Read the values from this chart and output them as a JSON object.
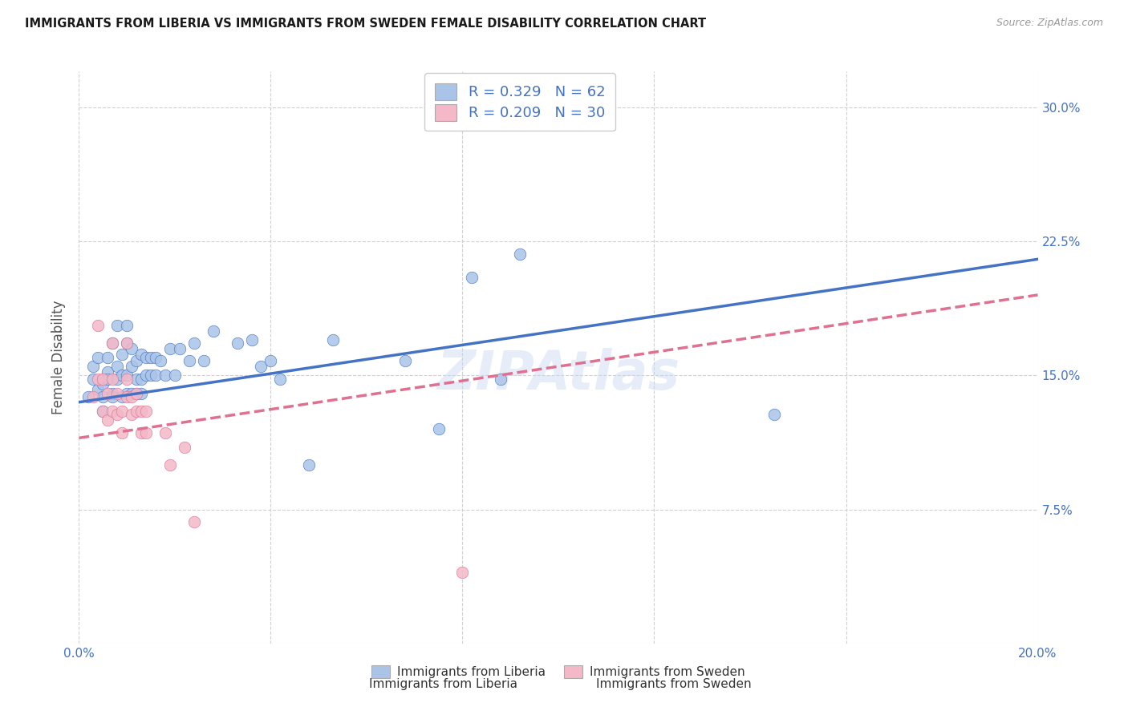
{
  "title": "IMMIGRANTS FROM LIBERIA VS IMMIGRANTS FROM SWEDEN FEMALE DISABILITY CORRELATION CHART",
  "source": "Source: ZipAtlas.com",
  "ylabel": "Female Disability",
  "xlim": [
    0.0,
    0.2
  ],
  "ylim": [
    0.0,
    0.32
  ],
  "xticks": [
    0.0,
    0.04,
    0.08,
    0.12,
    0.16,
    0.2
  ],
  "xticklabels_show": [
    "0.0%",
    "20.0%"
  ],
  "yticks": [
    0.0,
    0.075,
    0.15,
    0.225,
    0.3
  ],
  "yticklabels_right": [
    "",
    "7.5%",
    "15.0%",
    "22.5%",
    "30.0%"
  ],
  "r_liberia": 0.329,
  "n_liberia": 62,
  "r_sweden": 0.209,
  "n_sweden": 30,
  "legend_label_1": "Immigrants from Liberia",
  "legend_label_2": "Immigrants from Sweden",
  "color_liberia": "#aac4e8",
  "color_sweden": "#f4b8c8",
  "line_color_liberia": "#4472c4",
  "line_color_sweden": "#e07090",
  "watermark": "ZIPAtlas",
  "background_color": "#ffffff",
  "grid_color": "#d0d0d0",
  "blue_text_color": "#4472c4",
  "liberia_points": [
    [
      0.002,
      0.138
    ],
    [
      0.003,
      0.148
    ],
    [
      0.003,
      0.155
    ],
    [
      0.004,
      0.142
    ],
    [
      0.004,
      0.16
    ],
    [
      0.005,
      0.13
    ],
    [
      0.005,
      0.145
    ],
    [
      0.005,
      0.138
    ],
    [
      0.006,
      0.152
    ],
    [
      0.006,
      0.148
    ],
    [
      0.006,
      0.16
    ],
    [
      0.007,
      0.14
    ],
    [
      0.007,
      0.168
    ],
    [
      0.007,
      0.138
    ],
    [
      0.008,
      0.148
    ],
    [
      0.008,
      0.155
    ],
    [
      0.008,
      0.178
    ],
    [
      0.009,
      0.138
    ],
    [
      0.009,
      0.15
    ],
    [
      0.009,
      0.162
    ],
    [
      0.01,
      0.14
    ],
    [
      0.01,
      0.15
    ],
    [
      0.01,
      0.178
    ],
    [
      0.01,
      0.168
    ],
    [
      0.011,
      0.155
    ],
    [
      0.011,
      0.165
    ],
    [
      0.011,
      0.14
    ],
    [
      0.012,
      0.148
    ],
    [
      0.012,
      0.158
    ],
    [
      0.012,
      0.14
    ],
    [
      0.013,
      0.148
    ],
    [
      0.013,
      0.162
    ],
    [
      0.013,
      0.14
    ],
    [
      0.014,
      0.15
    ],
    [
      0.014,
      0.16
    ],
    [
      0.015,
      0.15
    ],
    [
      0.015,
      0.16
    ],
    [
      0.016,
      0.15
    ],
    [
      0.016,
      0.16
    ],
    [
      0.017,
      0.158
    ],
    [
      0.018,
      0.15
    ],
    [
      0.019,
      0.165
    ],
    [
      0.02,
      0.15
    ],
    [
      0.021,
      0.165
    ],
    [
      0.023,
      0.158
    ],
    [
      0.024,
      0.168
    ],
    [
      0.026,
      0.158
    ],
    [
      0.028,
      0.175
    ],
    [
      0.033,
      0.168
    ],
    [
      0.036,
      0.17
    ],
    [
      0.038,
      0.155
    ],
    [
      0.04,
      0.158
    ],
    [
      0.042,
      0.148
    ],
    [
      0.048,
      0.1
    ],
    [
      0.053,
      0.17
    ],
    [
      0.068,
      0.158
    ],
    [
      0.075,
      0.12
    ],
    [
      0.082,
      0.205
    ],
    [
      0.088,
      0.148
    ],
    [
      0.092,
      0.218
    ],
    [
      0.145,
      0.128
    ],
    [
      0.092,
      0.295
    ]
  ],
  "sweden_points": [
    [
      0.003,
      0.138
    ],
    [
      0.004,
      0.148
    ],
    [
      0.004,
      0.178
    ],
    [
      0.005,
      0.13
    ],
    [
      0.005,
      0.148
    ],
    [
      0.006,
      0.125
    ],
    [
      0.006,
      0.14
    ],
    [
      0.007,
      0.13
    ],
    [
      0.007,
      0.148
    ],
    [
      0.007,
      0.168
    ],
    [
      0.008,
      0.128
    ],
    [
      0.008,
      0.14
    ],
    [
      0.009,
      0.118
    ],
    [
      0.009,
      0.13
    ],
    [
      0.01,
      0.138
    ],
    [
      0.01,
      0.148
    ],
    [
      0.01,
      0.168
    ],
    [
      0.011,
      0.128
    ],
    [
      0.011,
      0.138
    ],
    [
      0.012,
      0.13
    ],
    [
      0.012,
      0.14
    ],
    [
      0.013,
      0.118
    ],
    [
      0.013,
      0.13
    ],
    [
      0.014,
      0.118
    ],
    [
      0.014,
      0.13
    ],
    [
      0.018,
      0.118
    ],
    [
      0.019,
      0.1
    ],
    [
      0.022,
      0.11
    ],
    [
      0.024,
      0.068
    ],
    [
      0.08,
      0.04
    ]
  ]
}
